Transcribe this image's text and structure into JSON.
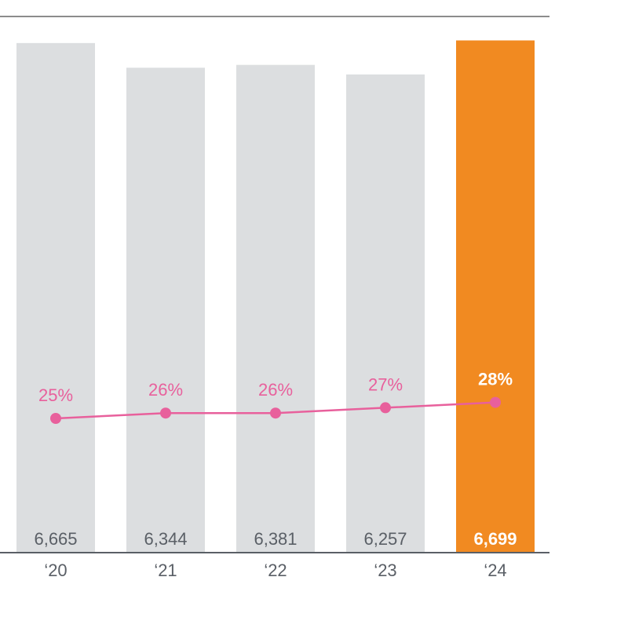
{
  "chart_data": {
    "type": "bar",
    "title": "",
    "xlabel": "",
    "ylabel": "",
    "categories": [
      "‘20",
      "‘21",
      "‘22",
      "‘23",
      "‘24"
    ],
    "series": [
      {
        "values": [
          6665,
          6344,
          6381,
          6257,
          6699
        ],
        "value_labels": [
          "6,665",
          "6,344",
          "6,381",
          "6,257",
          "6,699"
        ],
        "type": "bar"
      },
      {
        "values": [
          25,
          26,
          26,
          27,
          28
        ],
        "value_labels": [
          "25%",
          "26%",
          "26%",
          "27%",
          "28%"
        ],
        "type": "line"
      }
    ],
    "highlight_index": 4,
    "grid": false,
    "legend": "none",
    "colors": {
      "bar": "#dcdee0",
      "bar_highlight": "#f18a21",
      "bar_label": "#5a5f66",
      "bar_label_highlight": "#ffffff",
      "line": "#e8609c",
      "pct_label_highlight": "#ffffff",
      "axis": "#5a5f66",
      "top_rule": "#1a1a1a"
    }
  }
}
